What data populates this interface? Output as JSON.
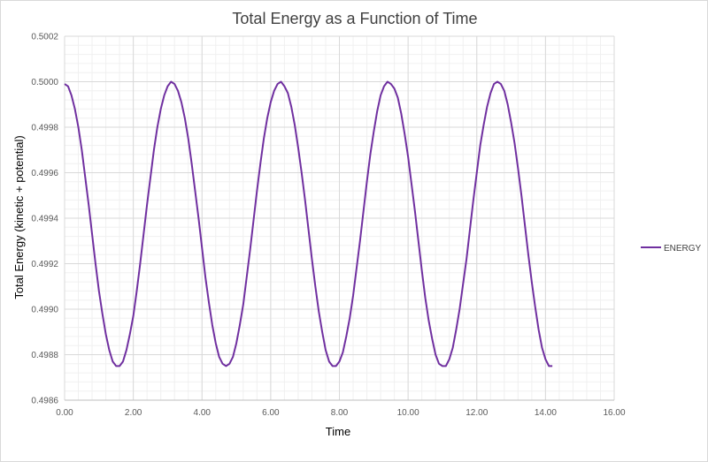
{
  "chart_data": {
    "type": "line",
    "title": "Total Energy as a Function of Time",
    "xlabel": "Time",
    "ylabel": "Total Energy (kinetic + potential)",
    "xlim": [
      0,
      16
    ],
    "ylim": [
      0.4986,
      0.5002
    ],
    "x_ticks": [
      "0.00",
      "2.00",
      "4.00",
      "6.00",
      "8.00",
      "10.00",
      "12.00",
      "14.00",
      "16.00"
    ],
    "y_ticks": [
      "0.4986",
      "0.4988",
      "0.4990",
      "0.4992",
      "0.4994",
      "0.4996",
      "0.4998",
      "0.5000",
      "0.5002"
    ],
    "grid": true,
    "legend_position": "right",
    "series": [
      {
        "name": "ENERGY",
        "color": "#7030a0",
        "x": [
          0.0,
          0.1,
          0.2,
          0.3,
          0.4,
          0.5,
          0.6,
          0.7,
          0.8,
          0.9,
          1.0,
          1.1,
          1.2,
          1.3,
          1.4,
          1.5,
          1.6,
          1.7,
          1.8,
          1.9,
          2.0,
          2.1,
          2.2,
          2.3,
          2.4,
          2.5,
          2.6,
          2.7,
          2.8,
          2.9,
          3.0,
          3.1,
          3.2,
          3.3,
          3.4,
          3.5,
          3.6,
          3.7,
          3.8,
          3.9,
          4.0,
          4.1,
          4.2,
          4.3,
          4.4,
          4.5,
          4.6,
          4.7,
          4.8,
          4.9,
          5.0,
          5.1,
          5.2,
          5.3,
          5.4,
          5.5,
          5.6,
          5.7,
          5.8,
          5.9,
          6.0,
          6.1,
          6.2,
          6.3,
          6.4,
          6.5,
          6.6,
          6.7,
          6.8,
          6.9,
          7.0,
          7.1,
          7.2,
          7.3,
          7.4,
          7.5,
          7.6,
          7.7,
          7.8,
          7.9,
          8.0,
          8.1,
          8.2,
          8.3,
          8.4,
          8.5,
          8.6,
          8.7,
          8.8,
          8.9,
          9.0,
          9.1,
          9.2,
          9.3,
          9.4,
          9.5,
          9.6,
          9.7,
          9.8,
          9.9,
          10.0,
          10.1,
          10.2,
          10.3,
          10.4,
          10.5,
          10.6,
          10.7,
          10.8,
          10.9,
          11.0,
          11.1,
          11.2,
          11.3,
          11.4,
          11.5,
          11.6,
          11.7,
          11.8,
          11.9,
          12.0,
          12.1,
          12.2,
          12.3,
          12.4,
          12.5,
          12.6,
          12.7,
          12.8,
          12.9,
          13.0,
          13.1,
          13.2,
          13.3,
          13.4,
          13.5,
          13.6,
          13.7,
          13.8,
          13.9,
          14.0,
          14.1,
          14.2
        ],
        "values": [
          0.49999,
          0.49998,
          0.49994,
          0.49988,
          0.4998,
          0.4997,
          0.49958,
          0.49946,
          0.49933,
          0.4992,
          0.49908,
          0.49898,
          0.49889,
          0.49882,
          0.49877,
          0.49875,
          0.49875,
          0.49877,
          0.49882,
          0.49889,
          0.49897,
          0.49908,
          0.4992,
          0.49933,
          0.49946,
          0.49958,
          0.4997,
          0.4998,
          0.49988,
          0.49994,
          0.49998,
          0.5,
          0.49999,
          0.49996,
          0.49991,
          0.49984,
          0.49975,
          0.49964,
          0.49952,
          0.4994,
          0.49927,
          0.49914,
          0.49903,
          0.49893,
          0.49885,
          0.49879,
          0.49876,
          0.49875,
          0.49876,
          0.49879,
          0.49885,
          0.49893,
          0.49902,
          0.49914,
          0.49926,
          0.49939,
          0.49952,
          0.49964,
          0.49975,
          0.49984,
          0.49991,
          0.49996,
          0.49999,
          0.5,
          0.49998,
          0.49995,
          0.49989,
          0.49981,
          0.49971,
          0.4996,
          0.49948,
          0.49935,
          0.49922,
          0.4991,
          0.49899,
          0.4989,
          0.49882,
          0.49877,
          0.49875,
          0.49875,
          0.49877,
          0.49881,
          0.49888,
          0.49896,
          0.49906,
          0.49918,
          0.4993,
          0.49943,
          0.49956,
          0.49968,
          0.49978,
          0.49987,
          0.49994,
          0.49998,
          0.5,
          0.49999,
          0.49997,
          0.49993,
          0.49986,
          0.49977,
          0.49967,
          0.49955,
          0.49943,
          0.4993,
          0.49917,
          0.49905,
          0.49895,
          0.49887,
          0.4988,
          0.49876,
          0.49875,
          0.49875,
          0.49878,
          0.49883,
          0.49891,
          0.499,
          0.49911,
          0.49922,
          0.49935,
          0.49948,
          0.4996,
          0.49972,
          0.49981,
          0.49989,
          0.49995,
          0.49999,
          0.5,
          0.49999,
          0.49996,
          0.4999,
          0.49982,
          0.49973,
          0.49962,
          0.4995,
          0.49937,
          0.49924,
          0.49912,
          0.49901,
          0.49891,
          0.49883,
          0.49878,
          0.49875,
          0.49875
        ]
      }
    ]
  }
}
